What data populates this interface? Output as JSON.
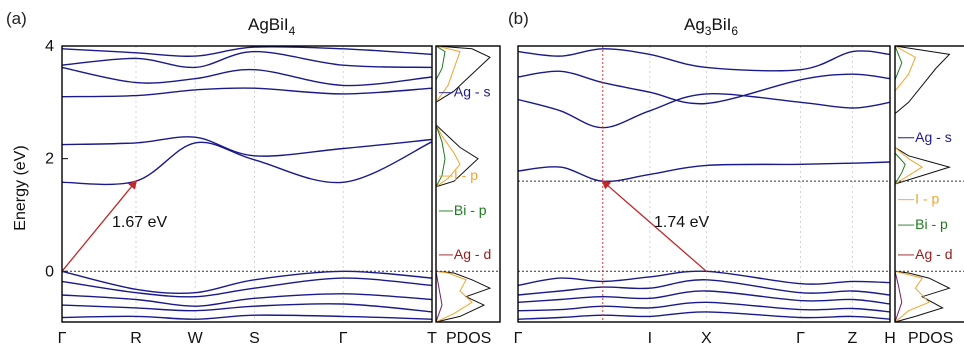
{
  "chart_data": [
    {
      "panel_label": "(a)",
      "title_base": "AgBiI",
      "title_sub": "4",
      "type": "line",
      "ylabel": "Energy (eV)",
      "ylim": [
        -0.9,
        4.0
      ],
      "yticks": [
        0,
        2,
        4
      ],
      "ytick_labels": [
        "0",
        "2",
        "4"
      ],
      "k_labels": [
        "Γ",
        "R",
        "W",
        "S",
        "Γ",
        "T"
      ],
      "k_positions": [
        0,
        1,
        1.8,
        2.6,
        3.8,
        5.0
      ],
      "pdos_label": "PDOS",
      "gap": {
        "label": "1.67 eV",
        "from": [
          0,
          0
        ],
        "to": [
          1,
          1.6
        ]
      },
      "band_color": "#1a1a8c",
      "series": [
        {
          "x": [
            0,
            1,
            1.8,
            2.6,
            3.8,
            5.0
          ],
          "y": [
            1.58,
            1.6,
            2.28,
            1.98,
            1.58,
            2.3
          ]
        },
        {
          "x": [
            0,
            1,
            1.8,
            2.6,
            3.8,
            5.0
          ],
          "y": [
            2.25,
            2.28,
            2.38,
            2.05,
            2.18,
            2.34
          ]
        },
        {
          "x": [
            0,
            1,
            1.8,
            2.6,
            3.8,
            5.0
          ],
          "y": [
            3.1,
            3.12,
            3.22,
            3.25,
            3.15,
            3.25
          ]
        },
        {
          "x": [
            0,
            1,
            1.8,
            2.6,
            3.8,
            5.0
          ],
          "y": [
            3.62,
            3.35,
            3.42,
            3.58,
            3.3,
            3.45
          ]
        },
        {
          "x": [
            0,
            1,
            1.8,
            2.6,
            3.8,
            5.0
          ],
          "y": [
            3.66,
            3.78,
            3.62,
            3.9,
            3.66,
            3.62
          ]
        },
        {
          "x": [
            0,
            1,
            1.8,
            2.6,
            3.8,
            5.0
          ],
          "y": [
            3.95,
            3.88,
            3.82,
            3.98,
            3.95,
            3.85
          ]
        },
        {
          "x": [
            0,
            1,
            1.8,
            2.6,
            3.8,
            5.0
          ],
          "y": [
            0.0,
            -0.32,
            -0.38,
            -0.15,
            0.0,
            -0.12
          ]
        },
        {
          "x": [
            0,
            1,
            1.8,
            2.6,
            3.8,
            5.0
          ],
          "y": [
            -0.18,
            -0.38,
            -0.45,
            -0.3,
            -0.12,
            -0.25
          ]
        },
        {
          "x": [
            0,
            1,
            1.8,
            2.6,
            3.8,
            5.0
          ],
          "y": [
            -0.42,
            -0.5,
            -0.62,
            -0.48,
            -0.4,
            -0.5
          ]
        },
        {
          "x": [
            0,
            1,
            1.8,
            2.6,
            3.8,
            5.0
          ],
          "y": [
            -0.6,
            -0.65,
            -0.7,
            -0.62,
            -0.58,
            -0.72
          ]
        },
        {
          "x": [
            0,
            1,
            1.8,
            2.6,
            3.8,
            5.0
          ],
          "y": [
            -0.82,
            -0.8,
            -0.85,
            -0.78,
            -0.8,
            -0.85
          ]
        }
      ],
      "pdos": {
        "xlim": [
          0,
          10
        ],
        "black": [
          [
            0,
            -0.9
          ],
          [
            4,
            -0.8
          ],
          [
            8,
            -0.6
          ],
          [
            5,
            -0.45
          ],
          [
            9,
            -0.3
          ],
          [
            6,
            -0.15
          ],
          [
            3,
            -0.03
          ],
          [
            0,
            0
          ],
          [
            0,
            1.5
          ],
          [
            3,
            1.6
          ],
          [
            5,
            1.8
          ],
          [
            7,
            2.0
          ],
          [
            4,
            2.2
          ],
          [
            2,
            2.4
          ],
          [
            0,
            2.6
          ],
          [
            0,
            3.0
          ],
          [
            3,
            3.2
          ],
          [
            5,
            3.4
          ],
          [
            7,
            3.6
          ],
          [
            9,
            3.8
          ],
          [
            6,
            3.95
          ],
          [
            0,
            4
          ]
        ],
        "orange": [
          [
            0,
            -0.9
          ],
          [
            3,
            -0.75
          ],
          [
            6,
            -0.55
          ],
          [
            4,
            -0.35
          ],
          [
            5,
            -0.15
          ],
          [
            2,
            -0.03
          ],
          [
            0,
            0
          ],
          [
            0,
            1.5
          ],
          [
            2,
            1.65
          ],
          [
            4,
            1.9
          ],
          [
            3,
            2.1
          ],
          [
            1,
            2.4
          ],
          [
            0,
            2.6
          ],
          [
            0,
            3.0
          ],
          [
            2,
            3.3
          ],
          [
            3,
            3.6
          ],
          [
            4,
            3.9
          ],
          [
            0,
            4
          ]
        ],
        "green": [
          [
            0,
            1.5
          ],
          [
            1,
            1.7
          ],
          [
            1.5,
            2.0
          ],
          [
            1,
            2.3
          ],
          [
            0,
            2.6
          ],
          [
            0,
            3.4
          ],
          [
            1,
            3.6
          ],
          [
            1.5,
            3.9
          ],
          [
            0,
            4
          ]
        ],
        "purple": [
          [
            0,
            -0.9
          ],
          [
            1,
            -0.6
          ],
          [
            0.5,
            -0.3
          ],
          [
            0,
            0
          ]
        ],
        "labels": [
          {
            "text": "Ag - s",
            "color": "#1a1a8c",
            "y": 3.1
          },
          {
            "text": "I - p",
            "color": "#f2a42a",
            "y": 1.62
          },
          {
            "text": "Bi - p",
            "color": "#1f7a1f",
            "y": 1.0
          },
          {
            "text": "Ag - d",
            "color": "#9a1a1a",
            "y": 0.22
          }
        ]
      }
    },
    {
      "panel_label": "(b)",
      "title_base": "Ag",
      "title_sub": "3",
      "title_mid": "BiI",
      "title_sub2": "6",
      "type": "line",
      "ylim": [
        -0.9,
        4.0
      ],
      "k_labels": [
        "Γ",
        "I",
        "X",
        "Γ",
        "Z",
        "H"
      ],
      "k_positions": [
        0,
        1.4,
        2.0,
        3.0,
        3.55,
        3.95
      ],
      "pdos_label": "PDOS",
      "gap": {
        "label": "1.74 eV",
        "from": [
          2.0,
          0
        ],
        "to": [
          0.9,
          1.6
        ]
      },
      "band_color": "#1a1a8c",
      "series": [
        {
          "x": [
            0,
            0.45,
            0.9,
            1.4,
            2.0,
            3.0,
            3.55,
            3.95
          ],
          "y": [
            1.78,
            1.85,
            1.6,
            1.72,
            1.88,
            1.9,
            1.92,
            1.94
          ]
        },
        {
          "x": [
            0,
            0.45,
            0.9,
            1.4,
            2.0,
            3.0,
            3.55,
            3.95
          ],
          "y": [
            3.05,
            2.85,
            2.55,
            2.85,
            3.15,
            3.0,
            2.9,
            3.0
          ]
        },
        {
          "x": [
            0,
            0.45,
            0.9,
            1.4,
            2.0,
            3.0,
            3.55,
            3.95
          ],
          "y": [
            3.45,
            3.55,
            3.35,
            3.18,
            2.98,
            3.4,
            3.5,
            3.42
          ]
        },
        {
          "x": [
            0,
            0.45,
            0.9,
            1.4,
            2.0,
            3.0,
            3.55,
            3.95
          ],
          "y": [
            3.9,
            3.82,
            3.95,
            3.85,
            3.62,
            3.58,
            3.9,
            3.85
          ]
        },
        {
          "x": [
            0,
            0.45,
            0.9,
            1.4,
            2.0,
            3.0,
            3.55,
            3.95
          ],
          "y": [
            -0.25,
            -0.12,
            -0.18,
            -0.1,
            0.0,
            -0.22,
            -0.18,
            -0.2
          ]
        },
        {
          "x": [
            0,
            0.45,
            0.9,
            1.4,
            2.0,
            3.0,
            3.55,
            3.95
          ],
          "y": [
            -0.42,
            -0.35,
            -0.28,
            -0.3,
            -0.15,
            -0.38,
            -0.35,
            -0.42
          ]
        },
        {
          "x": [
            0,
            0.45,
            0.9,
            1.4,
            2.0,
            3.0,
            3.55,
            3.95
          ],
          "y": [
            -0.55,
            -0.5,
            -0.45,
            -0.48,
            -0.35,
            -0.52,
            -0.5,
            -0.58
          ]
        },
        {
          "x": [
            0,
            0.45,
            0.9,
            1.4,
            2.0,
            3.0,
            3.55,
            3.95
          ],
          "y": [
            -0.7,
            -0.68,
            -0.62,
            -0.65,
            -0.55,
            -0.68,
            -0.66,
            -0.72
          ]
        },
        {
          "x": [
            0,
            0.45,
            0.9,
            1.4,
            2.0,
            3.0,
            3.55,
            3.95
          ],
          "y": [
            -0.85,
            -0.82,
            -0.78,
            -0.8,
            -0.72,
            -0.82,
            -0.8,
            -0.85
          ]
        }
      ],
      "pdos": {
        "xlim": [
          0,
          10
        ],
        "black": [
          [
            0,
            -0.9
          ],
          [
            3,
            -0.8
          ],
          [
            7,
            -0.65
          ],
          [
            4,
            -0.45
          ],
          [
            8,
            -0.3
          ],
          [
            5,
            -0.12
          ],
          [
            2,
            -0.03
          ],
          [
            0,
            0
          ],
          [
            0,
            1.55
          ],
          [
            4,
            1.7
          ],
          [
            8,
            1.85
          ],
          [
            5,
            1.95
          ],
          [
            2,
            2.05
          ],
          [
            0,
            2.2
          ],
          [
            0,
            2.8
          ],
          [
            2,
            3.0
          ],
          [
            4,
            3.3
          ],
          [
            6,
            3.6
          ],
          [
            8,
            3.85
          ],
          [
            0,
            4
          ]
        ],
        "orange": [
          [
            0,
            -0.9
          ],
          [
            2,
            -0.7
          ],
          [
            5,
            -0.55
          ],
          [
            3,
            -0.3
          ],
          [
            4,
            -0.12
          ],
          [
            0,
            0
          ],
          [
            0,
            1.55
          ],
          [
            2,
            1.7
          ],
          [
            4,
            1.85
          ],
          [
            2,
            2.0
          ],
          [
            0,
            2.2
          ],
          [
            0,
            3.2
          ],
          [
            2,
            3.5
          ],
          [
            3,
            3.8
          ],
          [
            0,
            4
          ]
        ],
        "green": [
          [
            0,
            1.55
          ],
          [
            1,
            1.75
          ],
          [
            1.5,
            1.9
          ],
          [
            0,
            2.1
          ],
          [
            0,
            3.4
          ],
          [
            1,
            3.7
          ],
          [
            0,
            4
          ]
        ],
        "purple": [
          [
            0,
            -0.9
          ],
          [
            1,
            -0.55
          ],
          [
            0.5,
            -0.25
          ],
          [
            0,
            0
          ]
        ],
        "labels": [
          {
            "text": "Ag - s",
            "color": "#1a1a8c",
            "y": 2.3
          },
          {
            "text": "I - p",
            "color": "#f2a42a",
            "y": 1.2
          },
          {
            "text": "Bi - p",
            "color": "#1f7a1f",
            "y": 0.75
          },
          {
            "text": "Ag - d",
            "color": "#9a1a1a",
            "y": 0.22
          }
        ]
      }
    }
  ]
}
